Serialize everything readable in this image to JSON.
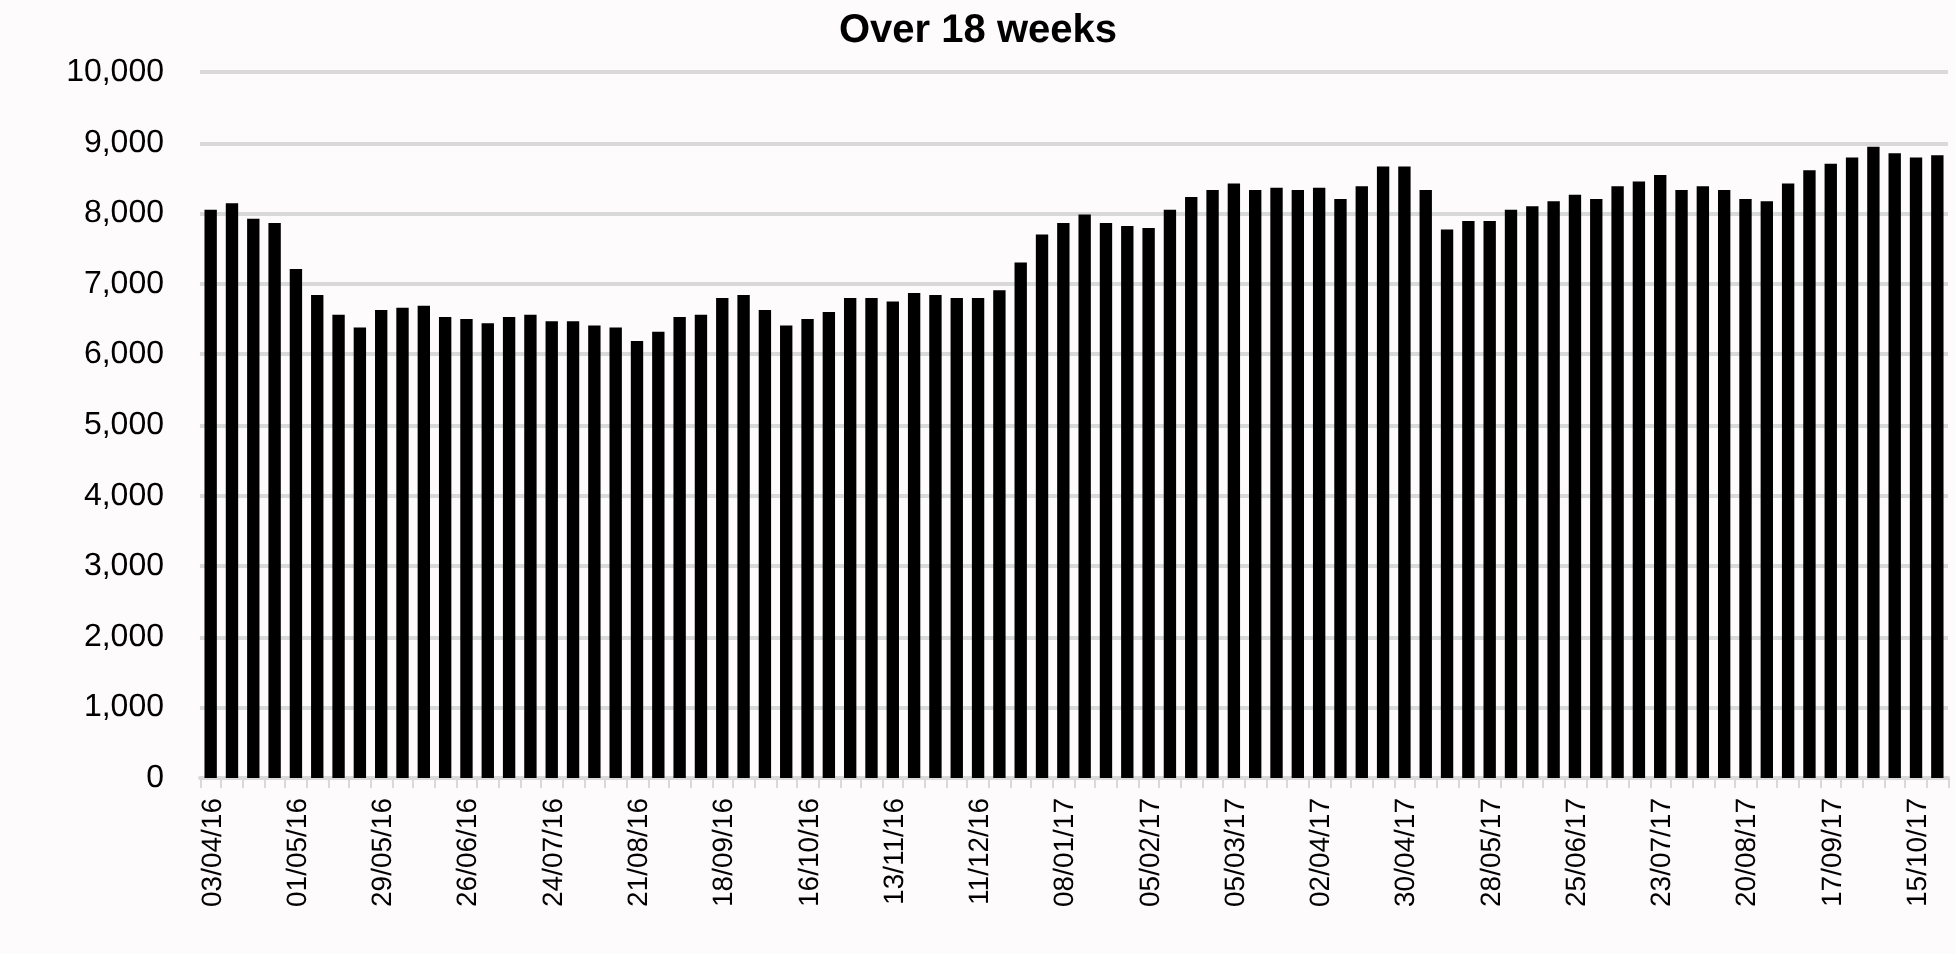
{
  "chart_data": {
    "type": "bar",
    "title": "Over 18 weeks",
    "categories": [
      "03/04/16",
      null,
      null,
      null,
      "01/05/16",
      null,
      null,
      null,
      "29/05/16",
      null,
      null,
      null,
      "26/06/16",
      null,
      null,
      null,
      "24/07/16",
      null,
      null,
      null,
      "21/08/16",
      null,
      null,
      null,
      "18/09/16",
      null,
      null,
      null,
      "16/10/16",
      null,
      null,
      null,
      "13/11/16",
      null,
      null,
      null,
      "11/12/16",
      null,
      null,
      null,
      "08/01/17",
      null,
      null,
      null,
      "05/02/17",
      null,
      null,
      null,
      "05/03/17",
      null,
      null,
      null,
      "02/04/17",
      null,
      null,
      null,
      "30/04/17",
      null,
      null,
      null,
      "28/05/17",
      null,
      null,
      null,
      "25/06/17",
      null,
      null,
      null,
      "23/07/17",
      null,
      null,
      null,
      "20/08/17",
      null,
      null,
      null,
      "17/09/17",
      null,
      null,
      null,
      "15/10/17",
      null
    ],
    "values": [
      8050,
      8140,
      7920,
      7860,
      7210,
      6840,
      6560,
      6380,
      6630,
      6660,
      6690,
      6530,
      6500,
      6440,
      6530,
      6560,
      6470,
      6470,
      6410,
      6380,
      6190,
      6320,
      6530,
      6560,
      6800,
      6840,
      6630,
      6410,
      6500,
      6600,
      6800,
      6800,
      6750,
      6870,
      6840,
      6800,
      6800,
      6910,
      7300,
      7700,
      7860,
      7980,
      7860,
      7820,
      7790,
      8050,
      8230,
      8330,
      8420,
      8330,
      8360,
      8330,
      8360,
      8200,
      8380,
      8660,
      8660,
      8330,
      7770,
      7890,
      7890,
      8050,
      8100,
      8170,
      8260,
      8200,
      8380,
      8450,
      8540,
      8330,
      8380,
      8330,
      8200,
      8170,
      8420,
      8610,
      8700,
      8790,
      8940,
      8850,
      8790,
      8820
    ],
    "color": "#000000",
    "ylim": [
      0,
      10000
    ],
    "yticks": [
      0,
      {
        "value": 1000,
        "label": "1,000"
      },
      {
        "value": 2000,
        "label": "2,000"
      },
      {
        "value": 3000,
        "label": "3,000"
      },
      {
        "value": 4000,
        "label": "4,000"
      },
      {
        "value": 5000,
        "label": "5,000"
      },
      {
        "value": 6000,
        "label": "6,000"
      },
      {
        "value": 7000,
        "label": "7,000"
      },
      {
        "value": 8000,
        "label": "8,000"
      },
      {
        "value": 9000,
        "label": "9,000"
      },
      {
        "value": 10000,
        "label": "10,000"
      }
    ],
    "grid": "y"
  }
}
